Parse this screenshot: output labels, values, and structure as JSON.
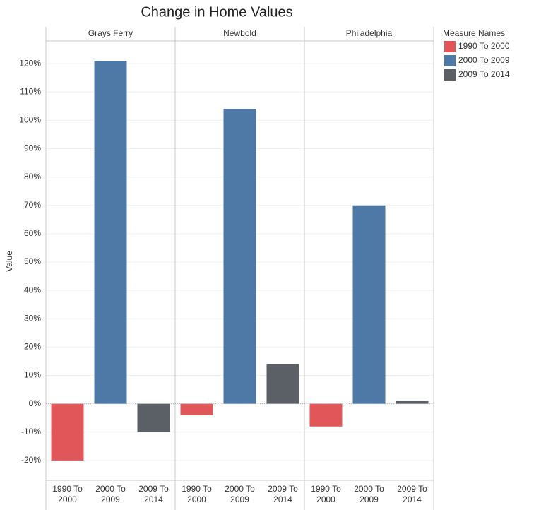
{
  "chart_data": {
    "type": "bar",
    "title": "Change in Home Values",
    "ylabel": "Value",
    "panels": [
      "Grays Ferry",
      "Newbold",
      "Philadelphia"
    ],
    "legend_title": "Measure Names",
    "series": [
      {
        "name": "1990 To 2000",
        "color": "#e15759",
        "values": [
          -20,
          -4,
          -8
        ]
      },
      {
        "name": "2000 To 2009",
        "color": "#4e79a7",
        "values": [
          121,
          104,
          70
        ]
      },
      {
        "name": "2009 To 2014",
        "color": "#5b5f66",
        "values": [
          -10,
          14,
          1
        ]
      }
    ],
    "ylim": [
      -27,
      128
    ],
    "yticks": [
      {
        "value": -20,
        "label": "-20%"
      },
      {
        "value": -10,
        "label": "-10%"
      },
      {
        "value": 0,
        "label": "0%"
      },
      {
        "value": 10,
        "label": "10%"
      },
      {
        "value": 20,
        "label": "20%"
      },
      {
        "value": 30,
        "label": "30%"
      },
      {
        "value": 40,
        "label": "40%"
      },
      {
        "value": 50,
        "label": "50%"
      },
      {
        "value": 60,
        "label": "60%"
      },
      {
        "value": 70,
        "label": "70%"
      },
      {
        "value": 80,
        "label": "80%"
      },
      {
        "value": 90,
        "label": "90%"
      },
      {
        "value": 100,
        "label": "100%"
      },
      {
        "value": 110,
        "label": "110%"
      },
      {
        "value": 120,
        "label": "120%"
      }
    ],
    "grid": true
  }
}
